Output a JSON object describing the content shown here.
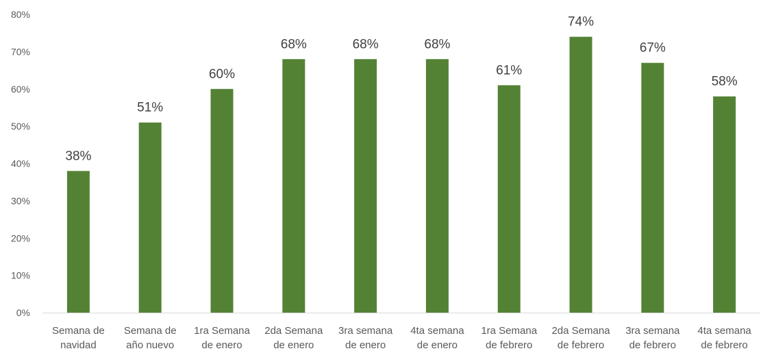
{
  "chart_data": {
    "type": "bar",
    "title": "",
    "xlabel": "",
    "ylabel": "",
    "ylim": [
      0,
      80
    ],
    "y_tick_step": 10,
    "y_tick_format": "percent",
    "grid": false,
    "legend": "none",
    "colors": {
      "bar": "#548235",
      "axis": "#d9d9d9",
      "text": "#595959"
    },
    "categories": [
      [
        "Semana de",
        "navidad"
      ],
      [
        "Semana de",
        "año nuevo"
      ],
      [
        "1ra Semana",
        "de enero"
      ],
      [
        "2da Semana",
        "de enero"
      ],
      [
        "3ra semana",
        "de enero"
      ],
      [
        "4ta semana",
        "de enero"
      ],
      [
        "1ra Semana",
        "de febrero"
      ],
      [
        "2da Semana",
        "de febrero"
      ],
      [
        "3ra semana",
        "de febrero"
      ],
      [
        "4ta semana",
        "de febrero"
      ]
    ],
    "values": [
      38,
      51,
      60,
      68,
      68,
      68,
      61,
      74,
      67,
      58
    ],
    "data_labels": [
      "38%",
      "51%",
      "60%",
      "68%",
      "68%",
      "68%",
      "61%",
      "74%",
      "67%",
      "58%"
    ],
    "y_ticks": [
      "0%",
      "10%",
      "20%",
      "30%",
      "40%",
      "50%",
      "60%",
      "70%",
      "80%"
    ]
  }
}
